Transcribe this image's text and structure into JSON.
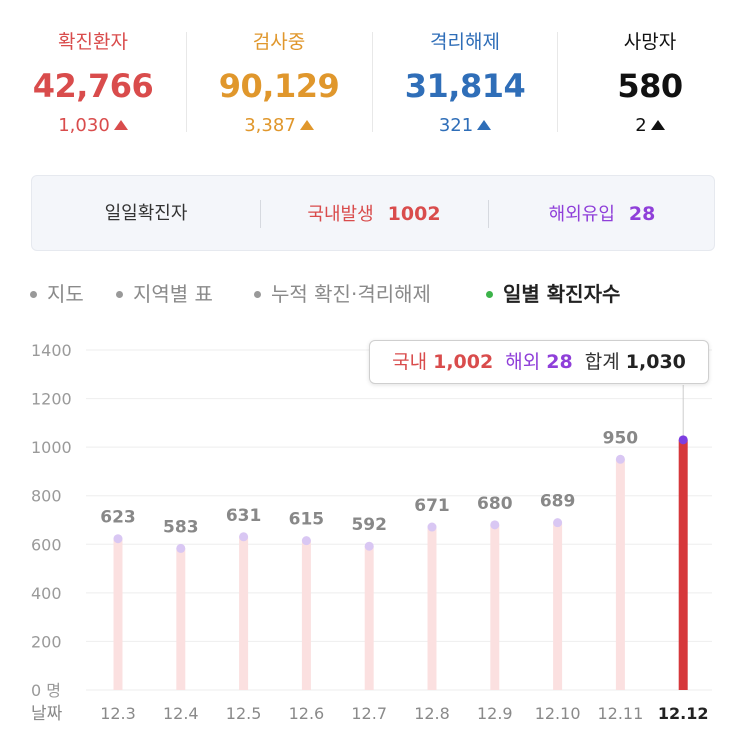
{
  "stats": [
    {
      "label": "확진환자",
      "value": "42,766",
      "delta": "1,030",
      "color": "#d94c4c"
    },
    {
      "label": "검사중",
      "value": "90,129",
      "delta": "3,387",
      "color": "#e0972c"
    },
    {
      "label": "격리해제",
      "value": "31,814",
      "delta": "321",
      "color": "#2f6eb8"
    },
    {
      "label": "사망자",
      "value": "580",
      "delta": "2",
      "color": "#111111"
    }
  ],
  "daily": {
    "label": "일일확진자",
    "domestic_label": "국내발생",
    "domestic_value": "1002",
    "overseas_label": "해외유입",
    "overseas_value": "28"
  },
  "tabs": [
    {
      "label": "지도",
      "active": false
    },
    {
      "label": "지역별 표",
      "active": false
    },
    {
      "label": "누적 확진·격리해제",
      "active": false
    },
    {
      "label": "일별 확진자수",
      "active": true
    }
  ],
  "tooltip": {
    "domestic_label": "국내",
    "domestic_value": "1,002",
    "overseas_label": "해외",
    "overseas_value": "28",
    "total_label": "합계",
    "total_value": "1,030"
  },
  "chart_data": {
    "type": "bar",
    "categories": [
      "12.3",
      "12.4",
      "12.5",
      "12.6",
      "12.7",
      "12.8",
      "12.9",
      "12.10",
      "12.11",
      "12.12"
    ],
    "values": [
      623,
      583,
      631,
      615,
      592,
      671,
      680,
      689,
      950,
      1030
    ],
    "highlight_index": 9,
    "y_ticks": [
      "0 명",
      "200",
      "400",
      "600",
      "800",
      "1000",
      "1200",
      "1400"
    ],
    "ylim": [
      0,
      1400
    ],
    "x_axis_label": "날짜",
    "grid": true,
    "colors": {
      "bar": "#fbe0e0",
      "highlight": "#d6383b",
      "cap": "#d9c7f3",
      "highlight_cap": "#7d3ee0",
      "grid": "#eeeeee",
      "value_label": "#888888"
    }
  },
  "colors": {
    "domestic": "#d94c4c",
    "overseas": "#8f3fd9",
    "active_dot": "#3cb34a"
  }
}
